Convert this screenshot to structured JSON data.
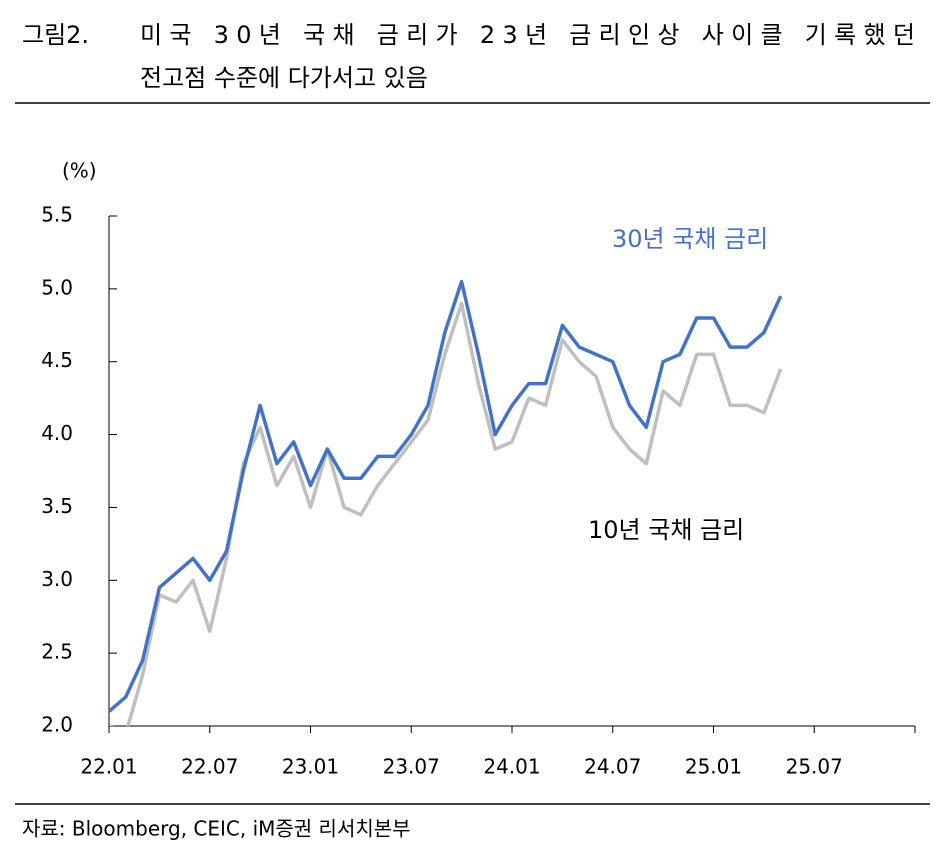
{
  "chart_data": {
    "type": "line",
    "figure_label": "그림2.",
    "title": [
      "미국 30년 국채 금리가 23년 금리인상 사이클 기록했던",
      "전고점 수준에 다가서고 있음"
    ],
    "ylabel": "(%)",
    "source": "자료: Bloomberg, CEIC, iM증권 리서치본부",
    "x": [
      "22.01",
      "22.02",
      "22.03",
      "22.04",
      "22.05",
      "22.06",
      "22.07",
      "22.08",
      "22.09",
      "22.10",
      "22.11",
      "22.12",
      "23.01",
      "23.02",
      "23.03",
      "23.04",
      "23.05",
      "23.06",
      "23.07",
      "23.08",
      "23.09",
      "23.10",
      "23.11",
      "23.12",
      "24.01",
      "24.02",
      "24.03",
      "24.04",
      "24.05",
      "24.06",
      "24.07",
      "24.08",
      "24.09",
      "24.10",
      "24.11",
      "24.12",
      "25.01",
      "25.02",
      "25.03",
      "25.04",
      "25.05"
    ],
    "xticks": [
      "22.01",
      "22.07",
      "23.01",
      "23.07",
      "24.01",
      "24.07",
      "25.01",
      "25.07"
    ],
    "ylim": [
      2.0,
      5.5
    ],
    "yticks": [
      {
        "value": 2,
        "label": "2.0"
      },
      2.5,
      {
        "value": 3,
        "label": "3.0"
      },
      3.5,
      {
        "value": 4,
        "label": "4.0"
      },
      4.5,
      {
        "value": 5,
        "label": "5.0"
      },
      5.5
    ],
    "series": [
      {
        "name": "30년 국채 금리",
        "color": "#4472c4",
        "values": [
          2.1,
          2.2,
          2.45,
          2.95,
          3.05,
          3.15,
          3.0,
          3.2,
          3.75,
          4.2,
          3.8,
          3.95,
          3.65,
          3.9,
          3.7,
          3.7,
          3.85,
          3.85,
          4.0,
          4.2,
          4.7,
          5.05,
          4.55,
          4.0,
          4.2,
          4.35,
          4.35,
          4.75,
          4.6,
          4.55,
          4.5,
          4.2,
          4.05,
          4.5,
          4.55,
          4.8,
          4.8,
          4.6,
          4.6,
          4.7,
          4.95
        ]
      },
      {
        "name": "10년 국채 금리",
        "color": "#bfbfbf",
        "values": [
          2.0,
          1.95,
          2.35,
          2.9,
          2.85,
          3.0,
          2.65,
          3.15,
          3.8,
          4.05,
          3.65,
          3.85,
          3.5,
          3.9,
          3.5,
          3.45,
          3.65,
          3.8,
          3.95,
          4.1,
          4.55,
          4.9,
          4.35,
          3.9,
          3.95,
          4.25,
          4.2,
          4.65,
          4.5,
          4.4,
          4.05,
          3.9,
          3.8,
          4.3,
          4.2,
          4.55,
          4.55,
          4.2,
          4.2,
          4.15,
          4.45
        ]
      }
    ]
  }
}
